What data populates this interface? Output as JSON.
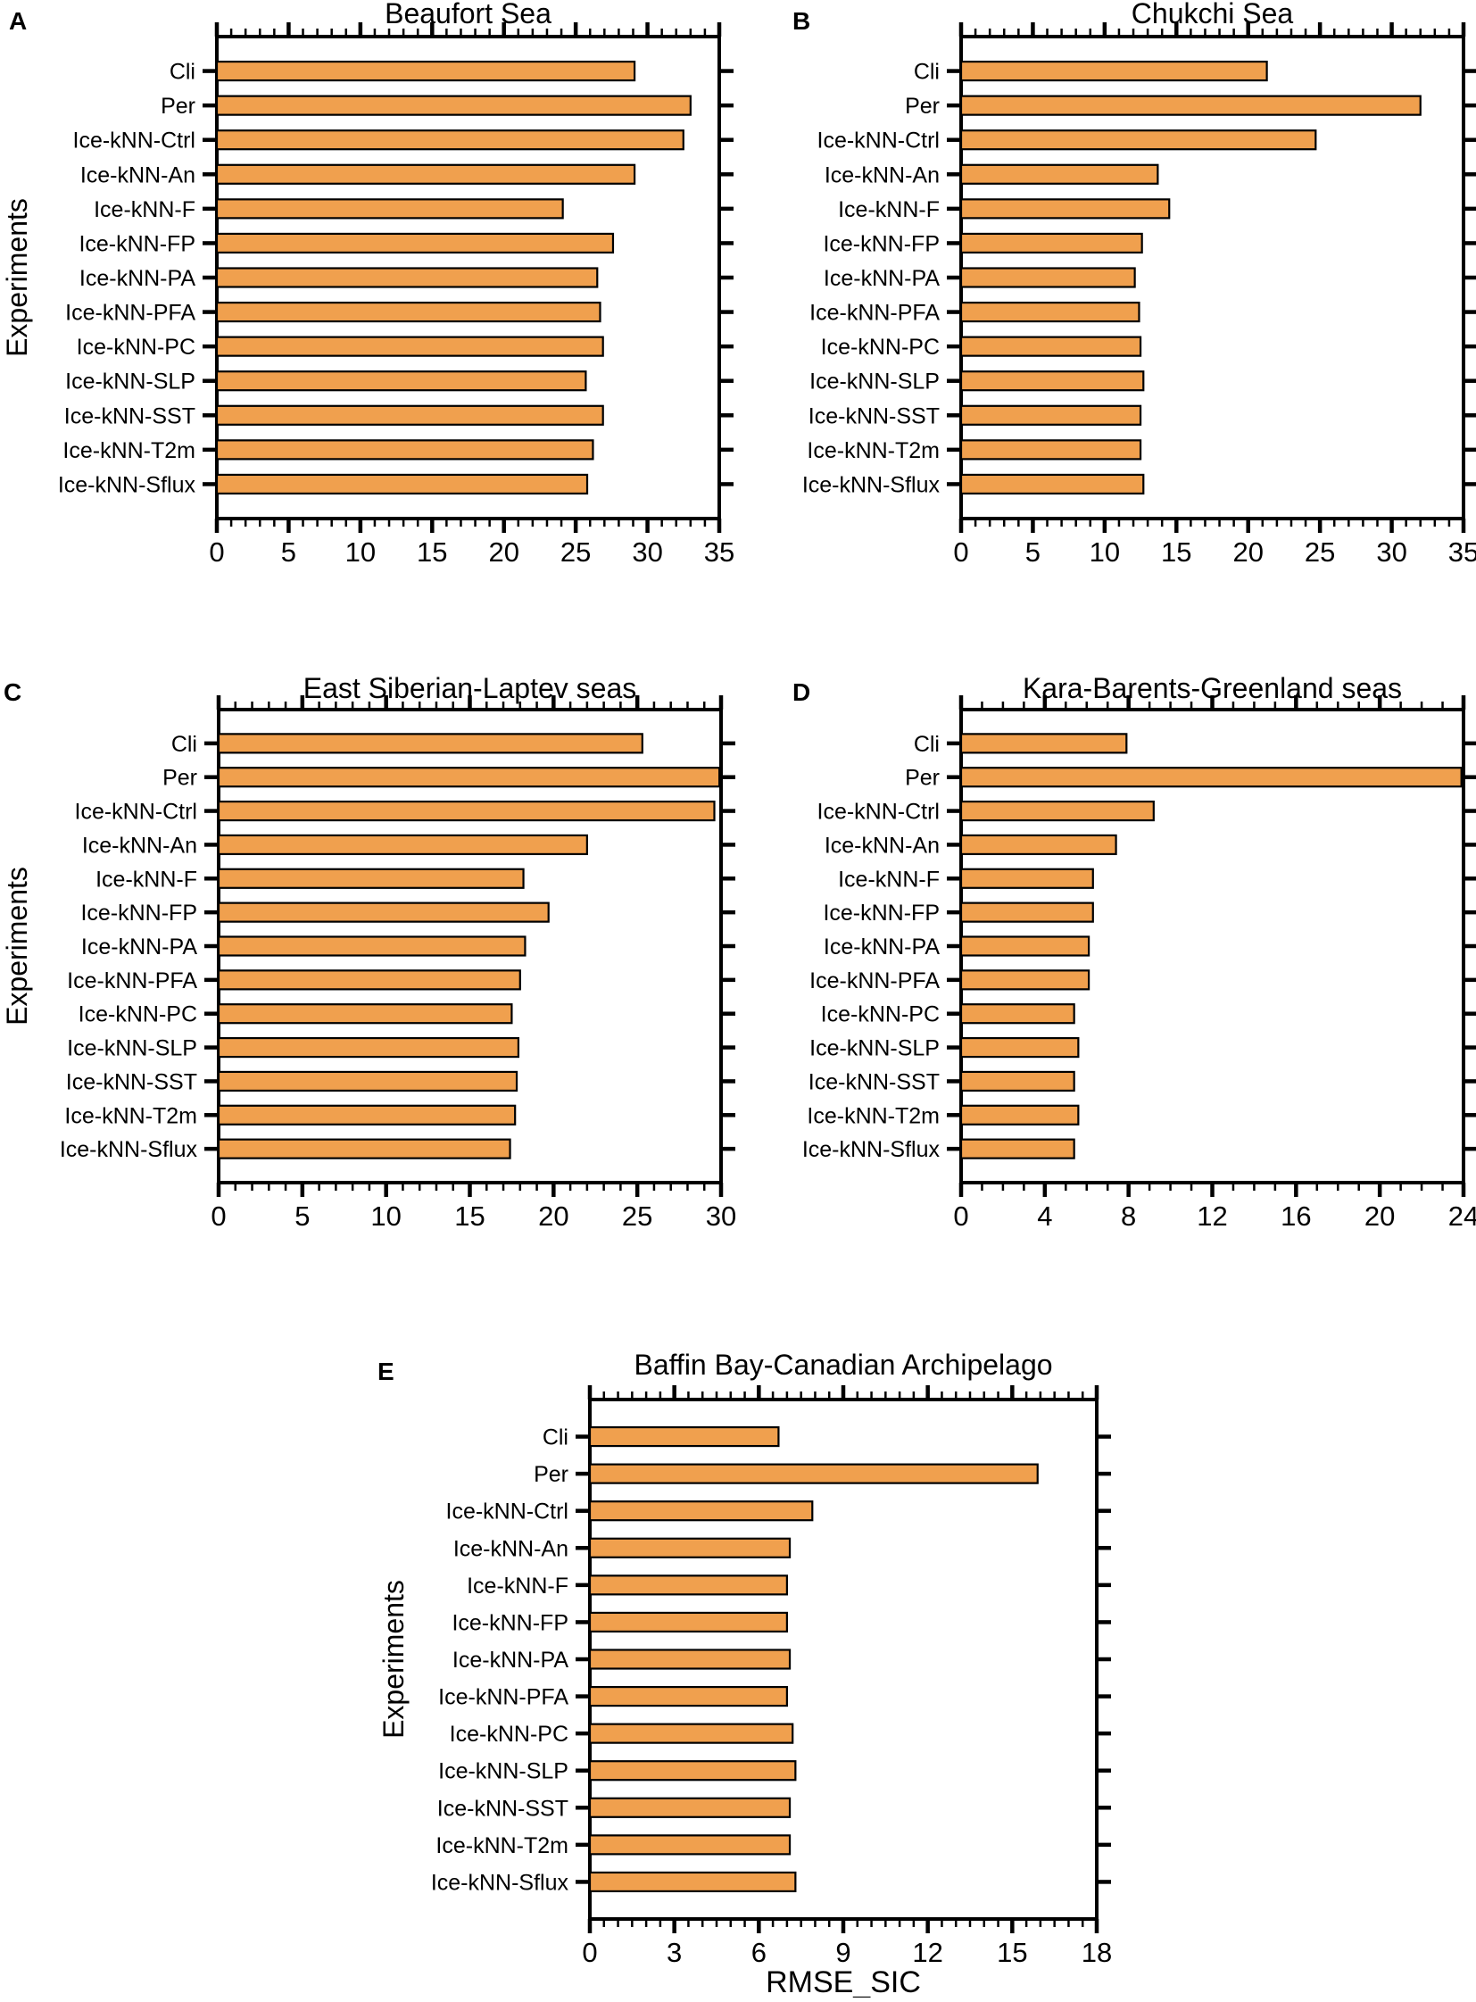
{
  "figure": {
    "background": "#ffffff",
    "bar_fill": "#F0A04E",
    "bar_stroke": "#000000",
    "axis_color": "#000000",
    "ylabel": "Experiments",
    "xlabel": "RMSE_SIC"
  },
  "chart_data": [
    {
      "type": "bar",
      "orientation": "horizontal",
      "panel_letter": "A",
      "title": "Beaufort Sea",
      "ylabel": "Experiments",
      "xlim": [
        0,
        35
      ],
      "xticks": [
        0,
        5,
        10,
        15,
        20,
        25,
        30,
        35
      ],
      "minor_tick_step": 1,
      "categories": [
        "Cli",
        "Per",
        "Ice-kNN-Ctrl",
        "Ice-kNN-An",
        "Ice-kNN-F",
        "Ice-kNN-FP",
        "Ice-kNN-PA",
        "Ice-kNN-PFA",
        "Ice-kNN-PC",
        "Ice-kNN-SLP",
        "Ice-kNN-SST",
        "Ice-kNN-T2m",
        "Ice-kNN-Sflux"
      ],
      "values": [
        29.1,
        33.0,
        32.5,
        29.1,
        24.1,
        27.6,
        26.5,
        26.7,
        26.9,
        25.7,
        26.9,
        26.2,
        25.8
      ]
    },
    {
      "type": "bar",
      "orientation": "horizontal",
      "panel_letter": "B",
      "title": "Chukchi Sea",
      "ylabel": "",
      "xlim": [
        0,
        35
      ],
      "xticks": [
        0,
        5,
        10,
        15,
        20,
        25,
        30,
        35
      ],
      "minor_tick_step": 1,
      "categories": [
        "Cli",
        "Per",
        "Ice-kNN-Ctrl",
        "Ice-kNN-An",
        "Ice-kNN-F",
        "Ice-kNN-FP",
        "Ice-kNN-PA",
        "Ice-kNN-PFA",
        "Ice-kNN-PC",
        "Ice-kNN-SLP",
        "Ice-kNN-SST",
        "Ice-kNN-T2m",
        "Ice-kNN-Sflux"
      ],
      "values": [
        21.3,
        32.0,
        24.7,
        13.7,
        14.5,
        12.6,
        12.1,
        12.4,
        12.5,
        12.7,
        12.5,
        12.5,
        12.7
      ]
    },
    {
      "type": "bar",
      "orientation": "horizontal",
      "panel_letter": "C",
      "title": "East Siberian-Laptev seas",
      "ylabel": "Experiments",
      "xlim": [
        0,
        30
      ],
      "xticks": [
        0,
        5,
        10,
        15,
        20,
        25,
        30
      ],
      "minor_tick_step": 1,
      "categories": [
        "Cli",
        "Per",
        "Ice-kNN-Ctrl",
        "Ice-kNN-An",
        "Ice-kNN-F",
        "Ice-kNN-FP",
        "Ice-kNN-PA",
        "Ice-kNN-PFA",
        "Ice-kNN-PC",
        "Ice-kNN-SLP",
        "Ice-kNN-SST",
        "Ice-kNN-T2m",
        "Ice-kNN-Sflux"
      ],
      "values": [
        25.3,
        29.9,
        29.6,
        22.0,
        18.2,
        19.7,
        18.3,
        18.0,
        17.5,
        17.9,
        17.8,
        17.7,
        17.4
      ]
    },
    {
      "type": "bar",
      "orientation": "horizontal",
      "panel_letter": "D",
      "title": "Kara-Barents-Greenland seas",
      "ylabel": "",
      "xlim": [
        0,
        24
      ],
      "xticks": [
        0,
        4,
        8,
        12,
        16,
        20,
        24
      ],
      "minor_tick_step": 1,
      "categories": [
        "Cli",
        "Per",
        "Ice-kNN-Ctrl",
        "Ice-kNN-An",
        "Ice-kNN-F",
        "Ice-kNN-FP",
        "Ice-kNN-PA",
        "Ice-kNN-PFA",
        "Ice-kNN-PC",
        "Ice-kNN-SLP",
        "Ice-kNN-SST",
        "Ice-kNN-T2m",
        "Ice-kNN-Sflux"
      ],
      "values": [
        7.9,
        23.9,
        9.2,
        7.4,
        6.3,
        6.3,
        6.1,
        6.1,
        5.4,
        5.6,
        5.4,
        5.6,
        5.4
      ]
    },
    {
      "type": "bar",
      "orientation": "horizontal",
      "panel_letter": "E",
      "title": "Baffin Bay-Canadian Archipelago",
      "ylabel": "Experiments",
      "xlabel": "RMSE_SIC",
      "xlim": [
        0,
        18
      ],
      "xticks": [
        0,
        3,
        6,
        9,
        12,
        15,
        18
      ],
      "minor_tick_step": 0.5,
      "categories": [
        "Cli",
        "Per",
        "Ice-kNN-Ctrl",
        "Ice-kNN-An",
        "Ice-kNN-F",
        "Ice-kNN-FP",
        "Ice-kNN-PA",
        "Ice-kNN-PFA",
        "Ice-kNN-PC",
        "Ice-kNN-SLP",
        "Ice-kNN-SST",
        "Ice-kNN-T2m",
        "Ice-kNN-Sflux"
      ],
      "values": [
        6.7,
        15.9,
        7.9,
        7.1,
        7.0,
        7.0,
        7.1,
        7.0,
        7.2,
        7.3,
        7.1,
        7.1,
        7.3
      ]
    }
  ]
}
